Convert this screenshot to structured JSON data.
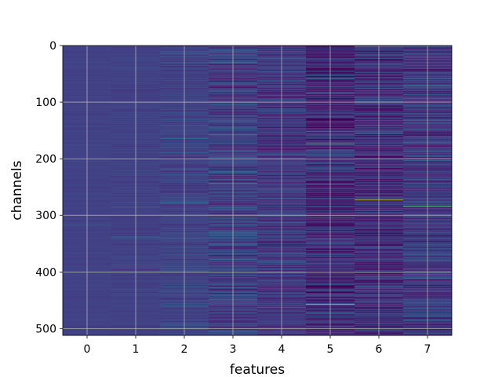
{
  "chart_data": {
    "type": "heatmap",
    "title": "",
    "xlabel": "features",
    "ylabel": "channels",
    "x_categories": [
      0,
      1,
      2,
      3,
      4,
      5,
      6,
      7
    ],
    "y_range": [
      0,
      512
    ],
    "y_ticks": [
      0,
      100,
      200,
      300,
      400,
      500
    ],
    "y_inverted": true,
    "grid": true,
    "colormap": "viridis",
    "n_channels": 512,
    "column_profiles": [
      {
        "feature": 0,
        "base": 0.24,
        "variation": 0.02
      },
      {
        "feature": 1,
        "base": 0.24,
        "variation": 0.04
      },
      {
        "feature": 2,
        "base": 0.25,
        "variation": 0.08
      },
      {
        "feature": 3,
        "base": 0.24,
        "variation": 0.16
      },
      {
        "feature": 4,
        "base": 0.21,
        "variation": 0.14
      },
      {
        "feature": 5,
        "base": 0.16,
        "variation": 0.2
      },
      {
        "feature": 6,
        "base": 0.17,
        "variation": 0.18
      },
      {
        "feature": 7,
        "base": 0.22,
        "variation": 0.17
      }
    ],
    "highlights": [
      {
        "feature": 5,
        "channel": 173,
        "value": 0.85
      },
      {
        "feature": 6,
        "channel": 272,
        "value": 0.95
      },
      {
        "feature": 7,
        "channel": 283,
        "value": 0.8
      },
      {
        "feature": 5,
        "channel": 457,
        "value": 0.88
      },
      {
        "feature": 6,
        "channel": 2,
        "value": 0.65
      },
      {
        "feature": 5,
        "channel": 58,
        "value": 0.62
      },
      {
        "feature": 3,
        "channel": 157,
        "value": 0.62
      },
      {
        "feature": 7,
        "channel": 70,
        "value": 0.6
      }
    ]
  }
}
